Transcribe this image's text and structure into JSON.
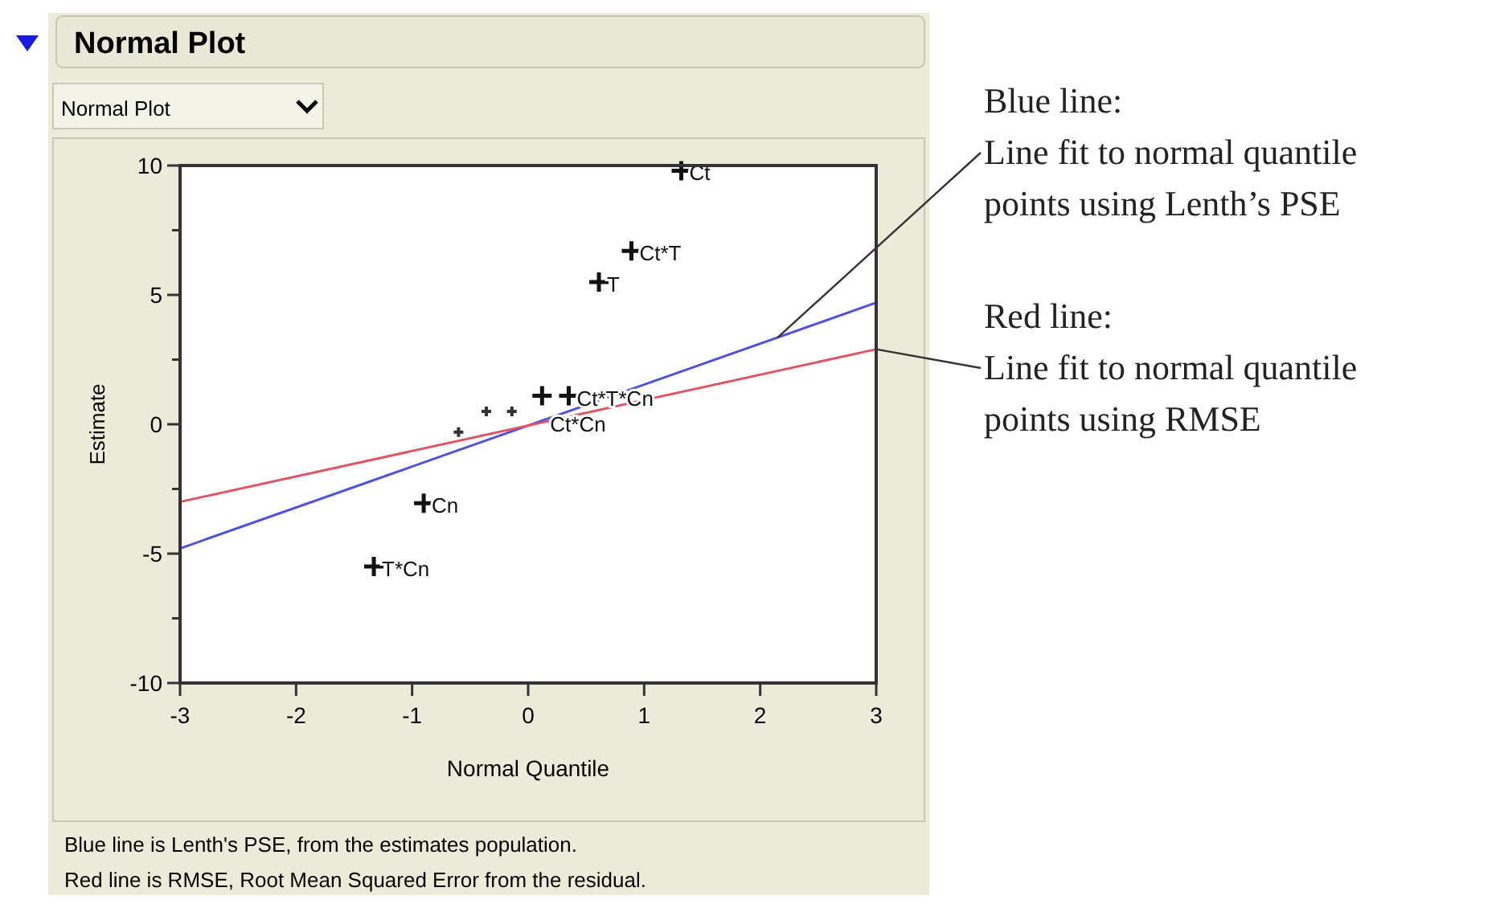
{
  "chart_data": {
    "type": "scatter",
    "title": "Normal Plot",
    "subtitle": "Normal Plot",
    "xlabel": "Normal Quantile",
    "ylabel": "Estimate",
    "xlim": [
      -3,
      3
    ],
    "xticks": [
      -3,
      -2,
      -1,
      0,
      1,
      2,
      3
    ],
    "ylim": [
      -10,
      10
    ],
    "yticks": [
      -10,
      {
        "value": -7.5,
        "label": null
      },
      -5,
      {
        "value": -2.5,
        "label": null
      },
      0,
      {
        "value": 2.5,
        "label": null
      },
      5,
      {
        "value": 7.5,
        "label": null
      },
      10
    ],
    "marker": "cross",
    "grid": false,
    "series": [
      {
        "name": "Ct",
        "color": "#111111",
        "x": [
          1.32
        ],
        "values": [
          9.8
        ]
      },
      {
        "name": "Ct*T",
        "color": "#111111",
        "x": [
          0.89
        ],
        "values": [
          6.7
        ]
      },
      {
        "name": "T",
        "color": "#111111",
        "x": [
          0.61
        ],
        "values": [
          5.5
        ]
      },
      {
        "name": "Ct*Cn",
        "color": "#111111",
        "x": [
          0.12
        ],
        "values": [
          1.1
        ]
      },
      {
        "name": "Ct*T*Cn",
        "color": "#111111",
        "x": [
          0.35
        ],
        "values": [
          1.1
        ]
      },
      {
        "name": "Cn",
        "color": "#111111",
        "x": [
          -0.9
        ],
        "values": [
          -3.05
        ]
      },
      {
        "name": "T*Cn",
        "color": "#111111",
        "x": [
          -1.33
        ],
        "values": [
          -5.5
        ]
      },
      {
        "color": "#333333",
        "x": [
          -0.6,
          -0.36,
          -0.14
        ],
        "values": [
          -0.3,
          0.5,
          0.5
        ]
      },
      {
        "type": "line",
        "marker": "none",
        "color": "#5050e0",
        "x": [
          -3,
          3
        ],
        "values": [
          -4.8,
          4.7
        ]
      },
      {
        "type": "line",
        "marker": "none",
        "color": "#e05565",
        "x": [
          -3,
          3
        ],
        "values": [
          -3,
          2.9
        ]
      }
    ],
    "annotations": [
      {
        "text": "Blue line:\nLine fit to normal quantile\npoints using Lenth’s PSE",
        "x": 2.15,
        "y": 3.35
      },
      "Red line:\nLine fit to normal quantile\npoints using RMSE",
      "Blue line is Lenth's PSE, from the estimates population.",
      "Red line is RMSE, Root Mean Squared Error from the residual."
    ]
  }
}
